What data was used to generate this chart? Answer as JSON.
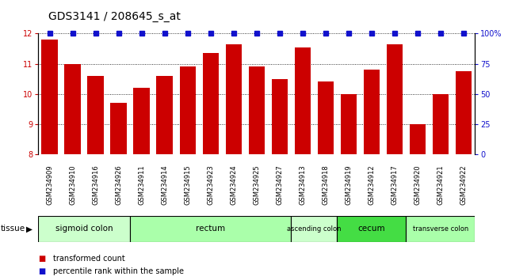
{
  "title": "GDS3141 / 208645_s_at",
  "samples": [
    "GSM234909",
    "GSM234910",
    "GSM234916",
    "GSM234926",
    "GSM234911",
    "GSM234914",
    "GSM234915",
    "GSM234923",
    "GSM234924",
    "GSM234925",
    "GSM234927",
    "GSM234913",
    "GSM234918",
    "GSM234919",
    "GSM234912",
    "GSM234917",
    "GSM234920",
    "GSM234921",
    "GSM234922"
  ],
  "bar_values": [
    11.8,
    11.0,
    10.6,
    9.7,
    10.2,
    10.6,
    10.9,
    11.35,
    11.65,
    10.9,
    10.5,
    11.55,
    10.4,
    10.0,
    10.8,
    11.65,
    9.0,
    10.0,
    10.75
  ],
  "bar_color": "#cc0000",
  "percentile_color": "#1111cc",
  "ylim_left": [
    8,
    12
  ],
  "ylim_right": [
    0,
    100
  ],
  "yticks_left": [
    8,
    9,
    10,
    11,
    12
  ],
  "yticks_right": [
    0,
    25,
    50,
    75,
    100
  ],
  "ytick_labels_right": [
    "0",
    "25",
    "50",
    "75",
    "100%"
  ],
  "tissues": [
    {
      "label": "sigmoid colon",
      "start": 0,
      "end": 4,
      "color": "#ccffcc"
    },
    {
      "label": "rectum",
      "start": 4,
      "end": 11,
      "color": "#aaffaa"
    },
    {
      "label": "ascending colon",
      "start": 11,
      "end": 13,
      "color": "#ccffcc"
    },
    {
      "label": "cecum",
      "start": 13,
      "end": 16,
      "color": "#44dd44"
    },
    {
      "label": "transverse colon",
      "start": 16,
      "end": 19,
      "color": "#aaffaa"
    }
  ],
  "legend_items": [
    {
      "label": "transformed count",
      "color": "#cc0000"
    },
    {
      "label": "percentile rank within the sample",
      "color": "#1111cc"
    }
  ],
  "background_color": "#ffffff",
  "plot_bg_color": "#ffffff",
  "xtick_area_color": "#cccccc",
  "title_fontsize": 10,
  "tick_fontsize": 7,
  "sample_fontsize": 6,
  "bar_width": 0.7
}
